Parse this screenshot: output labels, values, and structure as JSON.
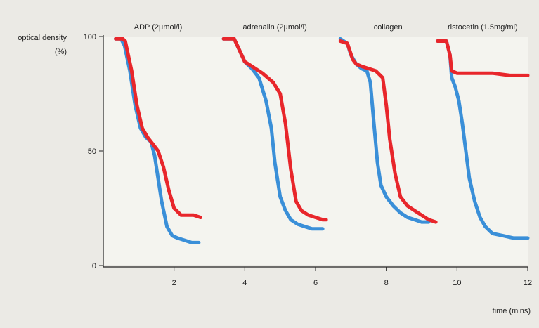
{
  "chart_data": {
    "type": "line",
    "ylabel_lines": [
      "optical density",
      "(%)"
    ],
    "xlabel": "time (mins)",
    "xlim": [
      0,
      12
    ],
    "ylim": [
      0,
      100
    ],
    "x_ticks": [
      2,
      4,
      6,
      8,
      10,
      12
    ],
    "y_ticks": [
      0,
      50,
      100
    ],
    "grid": false,
    "colors": {
      "red": "#e8262b",
      "blue": "#3a8fd8",
      "plot_bg": "#f4f4ef",
      "page_bg": "#ebeae5"
    },
    "panels": [
      {
        "title": "ADP (2µmol/l)",
        "series": [
          {
            "color": "red",
            "x": [
              0.35,
              0.55,
              0.62,
              0.8,
              0.95,
              1.1,
              1.25,
              1.4,
              1.55,
              1.7,
              1.85,
              2.0,
              2.2,
              2.4,
              2.55,
              2.75
            ],
            "y": [
              99,
              99,
              98,
              85,
              70,
              60,
              56,
              53,
              50,
              43,
              33,
              25,
              22,
              22,
              22,
              21
            ]
          },
          {
            "color": "blue",
            "x": [
              0.35,
              0.5,
              0.6,
              0.75,
              0.9,
              1.05,
              1.2,
              1.35,
              1.45,
              1.55,
              1.65,
              1.8,
              1.95,
              2.1,
              2.3,
              2.5,
              2.7
            ],
            "y": [
              99,
              99,
              96,
              85,
              70,
              60,
              56,
              54,
              48,
              38,
              28,
              17,
              13,
              12,
              11,
              10,
              10
            ]
          }
        ]
      },
      {
        "title": "adrenalin (2µmol/l)",
        "series": [
          {
            "color": "red",
            "x": [
              3.4,
              3.7,
              3.85,
              4.0,
              4.2,
              4.5,
              4.8,
              5.0,
              5.15,
              5.3,
              5.45,
              5.6,
              5.8,
              6.0,
              6.2,
              6.3
            ],
            "y": [
              99,
              99,
              94,
              89,
              87,
              84,
              80,
              75,
              62,
              42,
              28,
              24,
              22,
              21,
              20,
              20
            ]
          },
          {
            "color": "blue",
            "x": [
              3.4,
              3.7,
              3.85,
              4.0,
              4.2,
              4.4,
              4.6,
              4.75,
              4.85,
              5.0,
              5.15,
              5.3,
              5.5,
              5.7,
              5.9,
              6.1,
              6.2
            ],
            "y": [
              99,
              99,
              94,
              89,
              86,
              82,
              72,
              60,
              45,
              30,
              24,
              20,
              18,
              17,
              16,
              16,
              16
            ]
          }
        ]
      },
      {
        "title": "collagen",
        "series": [
          {
            "color": "red",
            "x": [
              6.7,
              6.9,
              7.05,
              7.15,
              7.3,
              7.5,
              7.7,
              7.9,
              8.0,
              8.1,
              8.25,
              8.4,
              8.6,
              8.8,
              9.0,
              9.2,
              9.4
            ],
            "y": [
              98,
              97,
              90,
              88,
              87,
              86,
              85,
              82,
              70,
              55,
              40,
              30,
              26,
              24,
              22,
              20,
              19
            ]
          },
          {
            "color": "blue",
            "x": [
              6.7,
              6.9,
              7.0,
              7.15,
              7.3,
              7.45,
              7.55,
              7.65,
              7.75,
              7.85,
              8.0,
              8.2,
              8.4,
              8.6,
              8.8,
              9.0,
              9.2
            ],
            "y": [
              99,
              97,
              92,
              88,
              86,
              85,
              80,
              62,
              45,
              35,
              30,
              26,
              23,
              21,
              20,
              19,
              19
            ]
          }
        ]
      },
      {
        "title": "ristocetin (1.5mg/ml)",
        "series": [
          {
            "color": "red",
            "x": [
              9.45,
              9.7,
              9.8,
              9.85,
              10.0,
              10.5,
              11.0,
              11.5,
              12.0
            ],
            "y": [
              98,
              98,
              92,
              85,
              84,
              84,
              84,
              83,
              83
            ]
          },
          {
            "color": "blue",
            "x": [
              9.45,
              9.7,
              9.8,
              9.85,
              9.95,
              10.05,
              10.15,
              10.25,
              10.35,
              10.5,
              10.65,
              10.8,
              11.0,
              11.3,
              11.6,
              12.0
            ],
            "y": [
              98,
              98,
              92,
              82,
              78,
              72,
              62,
              50,
              38,
              28,
              21,
              17,
              14,
              13,
              12,
              12
            ]
          }
        ]
      }
    ]
  }
}
